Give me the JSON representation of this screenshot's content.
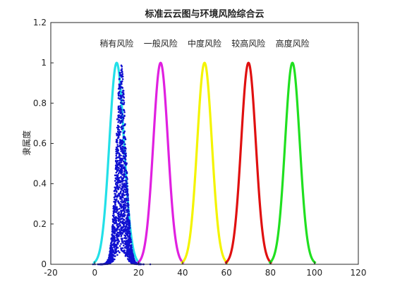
{
  "chart_data": {
    "type": "line",
    "title": "标准云云图与环境风险综合云",
    "xlabel": "",
    "ylabel": "隶属度",
    "xlim": [
      -20,
      120
    ],
    "ylim": [
      0,
      1.2
    ],
    "x_ticks": [
      -20,
      0,
      20,
      40,
      60,
      80,
      100,
      120
    ],
    "y_ticks": [
      0,
      0.2,
      0.4,
      0.6,
      0.8,
      1,
      1.2
    ],
    "grid": false,
    "series": [
      {
        "name": "稍有风险",
        "Ex": 10,
        "En": 3.33,
        "color": "#22e0e8"
      },
      {
        "name": "一般风险",
        "Ex": 30,
        "En": 3.33,
        "color": "#e020e0"
      },
      {
        "name": "中度风险",
        "Ex": 50,
        "En": 3.33,
        "color": "#f4f400"
      },
      {
        "name": "较高风险",
        "Ex": 70,
        "En": 3.33,
        "color": "#e01010"
      },
      {
        "name": "高度风险",
        "Ex": 90,
        "En": 3.33,
        "color": "#20e020"
      }
    ],
    "composite_cloud": {
      "type": "scatter",
      "Ex": 12,
      "En": 2.2,
      "color": "#1010d0"
    }
  }
}
